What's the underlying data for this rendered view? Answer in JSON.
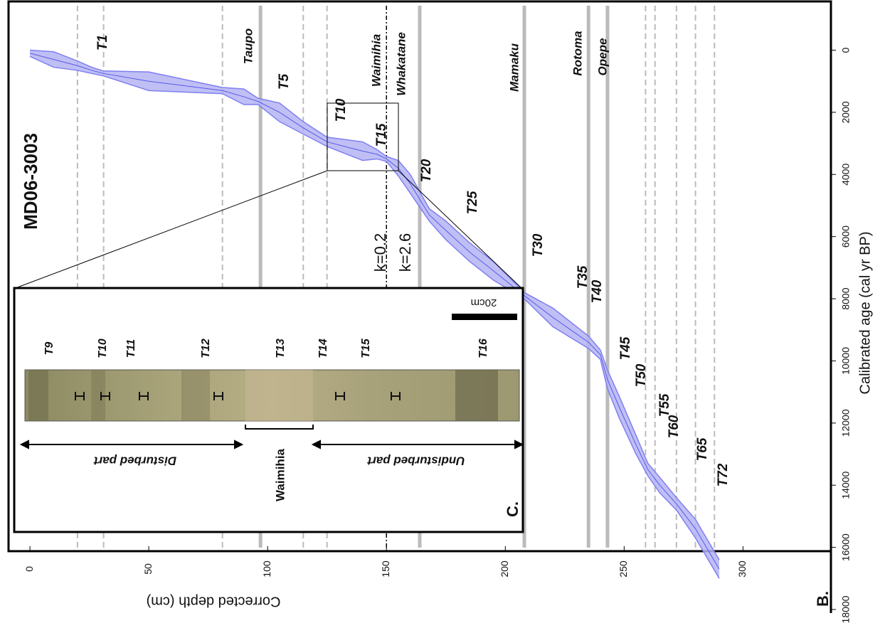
{
  "chart_data": {
    "type": "line",
    "title": "MD06-3003",
    "panel_label": "B.",
    "x_label": "Corrected depth (cm)",
    "y_label": "Calibrated age (cal yr BP)",
    "xlim": [
      -9,
      337
    ],
    "ylim": [
      -1500,
      18000
    ],
    "xticks": [
      0,
      50,
      100,
      150,
      200,
      250,
      300
    ],
    "yticks": [
      0,
      2000,
      4000,
      6000,
      8000,
      10000,
      12000,
      14000,
      16000,
      18000
    ],
    "x": [
      0,
      10,
      20,
      26,
      31,
      50,
      81,
      90,
      96,
      105,
      115,
      125,
      140,
      146,
      150,
      155,
      160,
      168,
      175,
      185,
      195,
      208,
      220,
      235,
      240,
      243,
      248,
      255,
      260,
      265,
      272,
      280,
      290
    ],
    "series": [
      {
        "color": "#5a5ae6",
        "values": [
          100,
          300,
          500,
          650,
          750,
          1000,
          1300,
          1500,
          1650,
          2000,
          2500,
          2950,
          3250,
          3350,
          3500,
          3800,
          4300,
          5300,
          5800,
          6500,
          7100,
          7900,
          8600,
          9400,
          9800,
          10600,
          11500,
          12700,
          13500,
          14000,
          14600,
          15400,
          16700
        ]
      },
      {
        "color": "#7f7ff0",
        "values": [
          0,
          50,
          350,
          550,
          670,
          700,
          1200,
          1250,
          1550,
          1700,
          2300,
          2800,
          2950,
          3200,
          3420,
          3550,
          4000,
          5100,
          5500,
          6200,
          6800,
          7800,
          8300,
          9200,
          9650,
          10300,
          11150,
          12400,
          13300,
          13750,
          14400,
          15100,
          16400
        ]
      },
      {
        "color": "#7f7ff0",
        "values": [
          200,
          550,
          650,
          750,
          830,
          1300,
          1400,
          1750,
          1750,
          2300,
          2700,
          3100,
          3550,
          3500,
          3580,
          4050,
          4600,
          5500,
          6100,
          6800,
          7400,
          8000,
          8900,
          9600,
          9950,
          10900,
          11850,
          13000,
          13700,
          14250,
          14800,
          15700,
          17000
        ]
      }
    ],
    "band_color": "#b4b4f5",
    "named_tephras": [
      {
        "label": "Taupo",
        "value": 97,
        "style": "solid"
      },
      {
        "label": "Waimihia",
        "value": 150,
        "style": "dashdot"
      },
      {
        "label": "Whakatane",
        "value": 164,
        "style": "solid"
      },
      {
        "label": "Mamaku",
        "value": 208,
        "style": "solid"
      },
      {
        "label": "Rotoma",
        "value": 235,
        "style": "solid"
      },
      {
        "label": "Opepe",
        "value": 243,
        "style": "solid"
      }
    ],
    "dashed_lines": [
      20,
      31,
      81,
      115,
      125,
      259,
      263,
      272,
      280,
      288
    ],
    "tephra_labels": [
      "T1",
      "T5",
      "T10",
      "T15",
      "T20",
      "T25",
      "T30",
      "T35",
      "T40",
      "T45",
      "T50",
      "T55",
      "T60",
      "T65",
      "T72"
    ],
    "annotations": [
      "k=0.2",
      "k=2.6"
    ],
    "inset": {
      "panel_label": "C.",
      "labels": [
        "T9",
        "T10",
        "T11",
        "T12",
        "T13",
        "T14",
        "T15",
        "T16"
      ],
      "scale_bar": "20cm",
      "disturbed": "Disturbed part",
      "undisturbed": "Undisturbed part",
      "waimihia": "Waimihia"
    }
  }
}
